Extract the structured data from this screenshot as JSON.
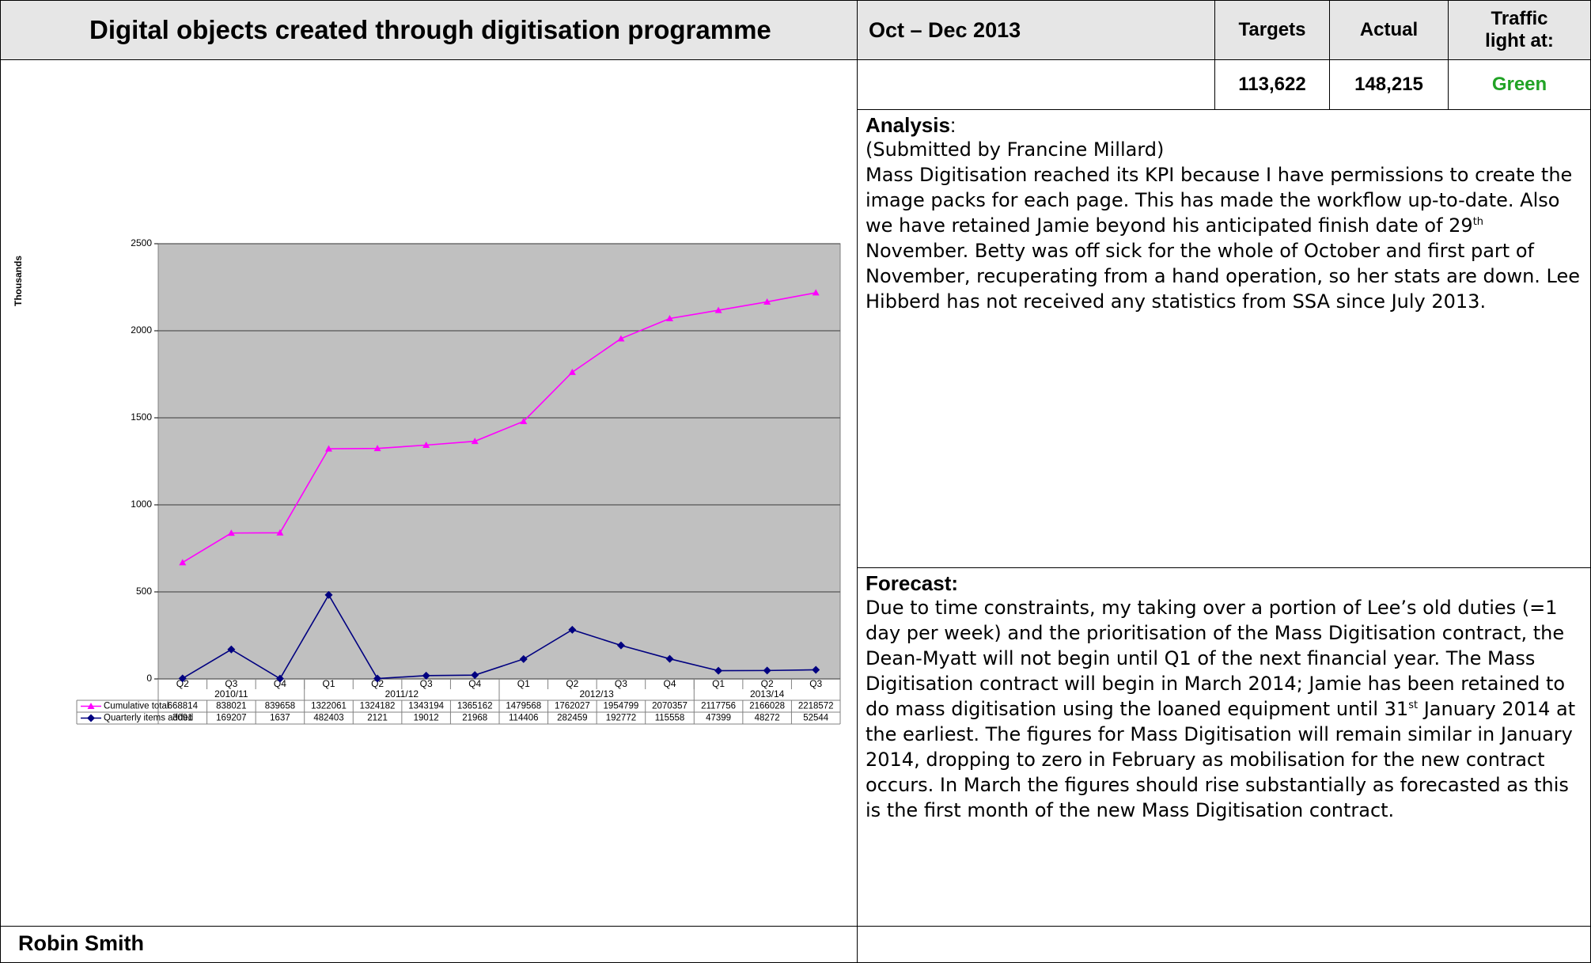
{
  "header": {
    "title": "Digital objects created through digitisation programme",
    "period": "Oct – Dec 2013",
    "targets_label": "Targets",
    "actual_label": "Actual",
    "traffic_label": "Traffic light at:"
  },
  "kpi": {
    "targets": "113,622",
    "actual": "148,215",
    "traffic": "Green"
  },
  "chart_data": {
    "type": "line",
    "ylabel": "Thousands",
    "categories": [
      "Q2",
      "Q3",
      "Q4",
      "Q1",
      "Q2",
      "Q3",
      "Q4",
      "Q1",
      "Q2",
      "Q3",
      "Q4",
      "Q1",
      "Q2",
      "Q3"
    ],
    "groups": [
      {
        "label": "2010/11",
        "count": 3
      },
      {
        "label": "2011/12",
        "count": 4
      },
      {
        "label": "2012/13",
        "count": 4
      },
      {
        "label": "2013/14",
        "count": 3
      }
    ],
    "ylim": [
      0,
      2500
    ],
    "yticks": [
      0,
      500,
      1000,
      1500,
      2000,
      2500
    ],
    "grid": true,
    "series": [
      {
        "name": "Cumulative total",
        "color": "#ff00ff",
        "marker": "triangle",
        "values": [
          668.814,
          838.021,
          839.658,
          1322.061,
          1324.182,
          1343.194,
          1365.162,
          1479.568,
          1762.027,
          1954.799,
          2070.357,
          2117.756,
          2166.028,
          2218.572
        ],
        "value_labels": [
          "668814",
          "838021",
          "839658",
          "1322061",
          "1324182",
          "1343194",
          "1365162",
          "1479568",
          "1762027",
          "1954799",
          "2070357",
          "2117756",
          "2166028",
          "2218572"
        ]
      },
      {
        "name": "Quarterly items added",
        "color": "#000080",
        "marker": "diamond",
        "values": [
          3.091,
          169.207,
          1.637,
          482.403,
          2.121,
          19.012,
          21.968,
          114.406,
          282.459,
          192.772,
          115.558,
          47.399,
          48.272,
          52.544
        ],
        "value_labels": [
          "3091",
          "169207",
          "1637",
          "482403",
          "2121",
          "19012",
          "21968",
          "114406",
          "282459",
          "192772",
          "115558",
          "47399",
          "48272",
          "52544"
        ]
      }
    ]
  },
  "analysis": {
    "heading": "Analysis",
    "colon": ":",
    "submitted": "(Submitted by Francine Millard)",
    "body": [
      "Mass Digitisation reached its KPI because I have permissions to create the image packs for each page. This has made the workflow up-to-date. Also we have retained Jamie beyond his anticipated finish date of 29",
      "th",
      " November. Betty was off sick for the whole of October and first part of November, recuperating from a hand operation, so her stats are down. Lee Hibberd has not received any statistics from SSA since July 2013."
    ]
  },
  "forecast": {
    "heading": "Forecast:",
    "body": [
      "Due to time constraints, my taking over a portion of Lee’s old duties (=1 day per week) and the prioritisation of the Mass Digitisation contract, the Dean-Myatt will not begin until Q1 of the next financial year. The Mass Digitisation contract will begin in March 2014; Jamie has been retained to do mass digitisation using the loaned equipment until 31",
      "st",
      " January 2014 at the earliest. The figures for Mass Digitisation will remain similar in January 2014, dropping to zero in February as mobilisation for the new contract occurs. In March the figures should rise substantially as forecasted as this is the first month of the new Mass Digitisation contract."
    ]
  },
  "footer": {
    "name": "Robin Smith"
  }
}
